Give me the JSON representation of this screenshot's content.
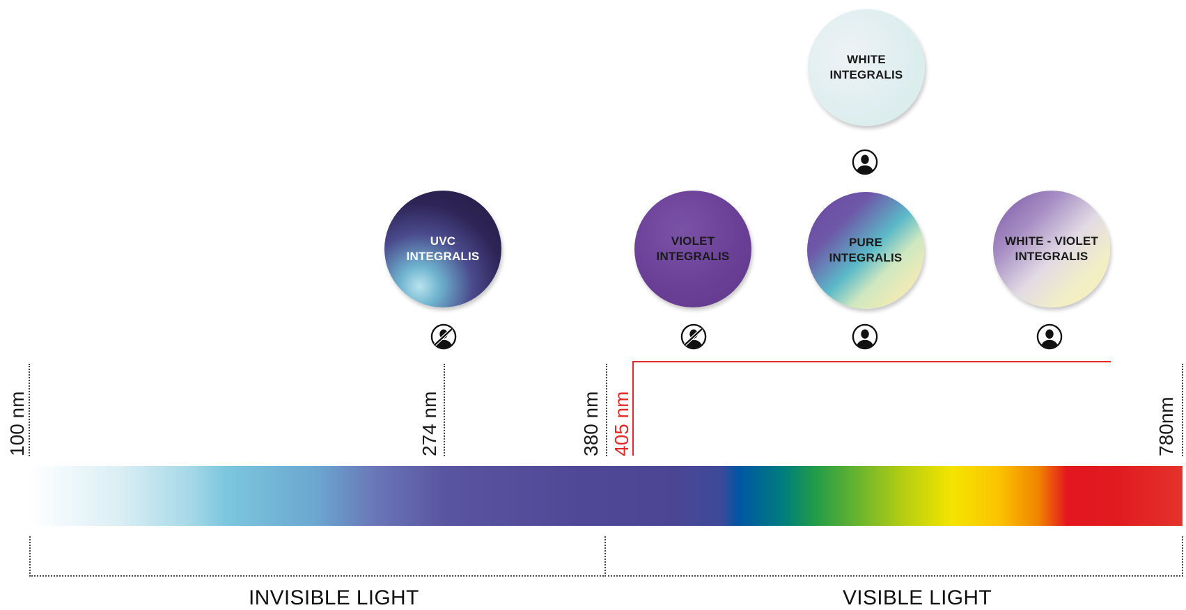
{
  "lamps": [
    {
      "id": "uvc",
      "label": "UVC\nINTEGRALIS"
    },
    {
      "id": "violet",
      "label": "VIOLET\nINTEGRALIS"
    },
    {
      "id": "pure",
      "label": "PURE\nINTEGRALIS"
    },
    {
      "id": "white_violet",
      "label": "WHITE - VIOLET\nINTEGRALIS"
    },
    {
      "id": "white",
      "label": "WHITE\nINTEGRALIS"
    }
  ],
  "safety_icons": {
    "uvc": "no-person-icon",
    "violet": "no-person-icon",
    "pure": "person-icon",
    "white_violet": "person-icon",
    "white": "person-icon"
  },
  "wavelengths": {
    "w100": "100 nm",
    "w274": "274 nm",
    "w380": "380 nm",
    "w405": "405 nm",
    "w780": "780nm"
  },
  "regions": {
    "invisible": "INVISIBLE LIGHT",
    "visible": "VISIBLE LIGHT"
  },
  "colors": {
    "highlight_405": "#e32a2a",
    "text": "#1a1a1a"
  }
}
